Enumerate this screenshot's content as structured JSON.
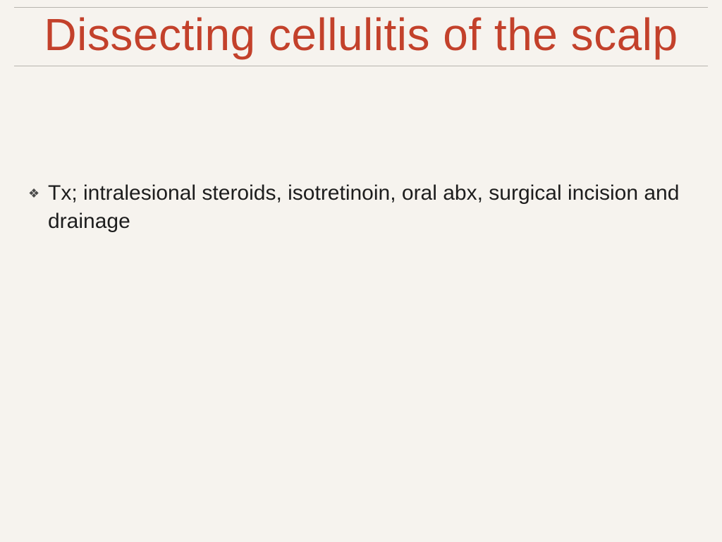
{
  "slide": {
    "title": "Dissecting cellulitis of the scalp",
    "title_color": "#c3412b",
    "title_fontsize": 64,
    "rule_color": "#b8b5ae",
    "background_color": "#f6f3ee",
    "bullets": [
      {
        "marker": "❖",
        "text": "Tx;  intralesional steroids, isotretinoin, oral abx, surgical incision and drainage"
      }
    ],
    "body_fontsize": 30,
    "body_color": "#1d1d1d",
    "bullet_marker_color": "#4a4a4a"
  }
}
